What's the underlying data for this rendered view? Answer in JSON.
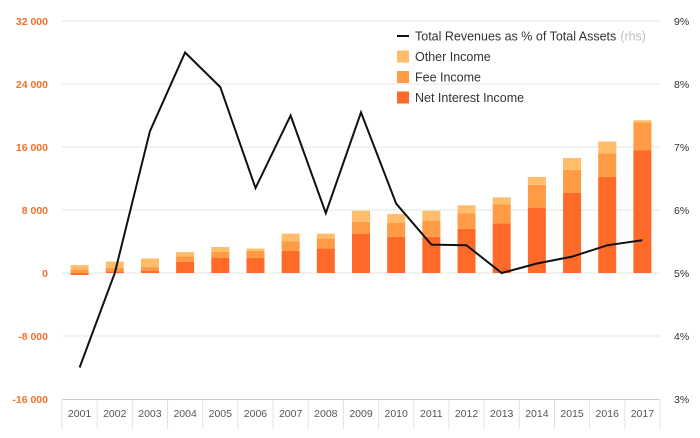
{
  "colors": {
    "net_interest": "#ff6a29",
    "fee": "#ff9a45",
    "other": "#ffbd6b",
    "line": "#111111",
    "left_axis_text": "#f0712b",
    "grid": "#e6e6e6"
  },
  "chart_data": {
    "type": "bar",
    "stacked": true,
    "title": "",
    "categories": [
      "2001",
      "2002",
      "2003",
      "2004",
      "2005",
      "2006",
      "2007",
      "2008",
      "2009",
      "2010",
      "2011",
      "2012",
      "2013",
      "2014",
      "2015",
      "2016",
      "2017"
    ],
    "series": [
      {
        "name": "Net Interest Income",
        "axis": "left",
        "color_key": "net_interest",
        "values": [
          -250,
          200,
          300,
          1400,
          1900,
          1900,
          2800,
          3100,
          5000,
          4600,
          4600,
          5600,
          6300,
          8300,
          10200,
          12200,
          15600
        ]
      },
      {
        "name": "Fee Income",
        "axis": "left",
        "color_key": "fee",
        "values": [
          450,
          450,
          450,
          700,
          800,
          900,
          1200,
          1300,
          1500,
          1800,
          2000,
          2000,
          2400,
          2900,
          2900,
          3000,
          3500
        ]
      },
      {
        "name": "Other Income",
        "axis": "left",
        "color_key": "other",
        "values": [
          550,
          800,
          1100,
          550,
          600,
          300,
          1000,
          600,
          1400,
          1100,
          1300,
          1000,
          900,
          1000,
          1500,
          1500,
          300
        ]
      },
      {
        "name": "Total Revenues as % of Total Assets",
        "axis": "right",
        "type": "line",
        "color_key": "line",
        "values": [
          3.5,
          5.0,
          7.25,
          8.5,
          7.95,
          6.35,
          7.5,
          5.95,
          7.55,
          6.1,
          5.45,
          5.44,
          5.0,
          5.15,
          5.26,
          5.44,
          5.52
        ]
      }
    ],
    "left_axis": {
      "ylim": [
        -16000,
        32000
      ],
      "ticks": [
        -16000,
        -8000,
        0,
        8000,
        16000,
        24000,
        32000
      ],
      "tick_labels": [
        "-16 000",
        "-8 000",
        "0",
        "8 000",
        "16 000",
        "24 000",
        "32 000"
      ]
    },
    "right_axis": {
      "ylim": [
        3,
        9
      ],
      "ticks": [
        3,
        4,
        5,
        6,
        7,
        8,
        9
      ],
      "tick_labels": [
        "3%",
        "4%",
        "5%",
        "6%",
        "7%",
        "8%",
        "9%"
      ]
    },
    "grid": true,
    "legend": {
      "position": "top-right",
      "entries": [
        {
          "label": "Total Revenues as % of Total Assets",
          "note": "(rhs)",
          "kind": "line",
          "color_key": "line"
        },
        {
          "label": "Other Income",
          "kind": "box",
          "color_key": "other"
        },
        {
          "label": "Fee Income",
          "kind": "box",
          "color_key": "fee"
        },
        {
          "label": "Net Interest Income",
          "kind": "box",
          "color_key": "net_interest"
        }
      ]
    }
  }
}
